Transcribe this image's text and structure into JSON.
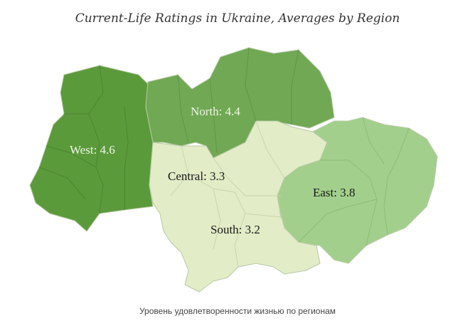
{
  "title": "Current-Life Ratings in Ukraine, Averages by Region",
  "caption": "Уровень удовлетворенности жизнью по регионам",
  "chart_data": {
    "type": "choropleth",
    "title": "Current-Life Ratings in Ukraine, Averages by Region",
    "regions": [
      {
        "name": "West",
        "value": 4.6,
        "label": "West: 4.6",
        "color": "#5b9a3b",
        "text_color": "#eef5e6"
      },
      {
        "name": "North",
        "value": 4.4,
        "label": "North: 4.4",
        "color": "#70a854",
        "text_color": "#eef5e6"
      },
      {
        "name": "Central",
        "value": 3.3,
        "label": "Central: 3.3",
        "color": "#e2ecc6",
        "text_color": "#1a1a1a"
      },
      {
        "name": "South",
        "value": 3.2,
        "label": "South: 3.2",
        "color": "#e2ecc6",
        "text_color": "#1a1a1a"
      },
      {
        "name": "East",
        "value": 3.8,
        "label": "East: 3.8",
        "color": "#a2d08c",
        "text_color": "#1a1a1a"
      }
    ]
  }
}
